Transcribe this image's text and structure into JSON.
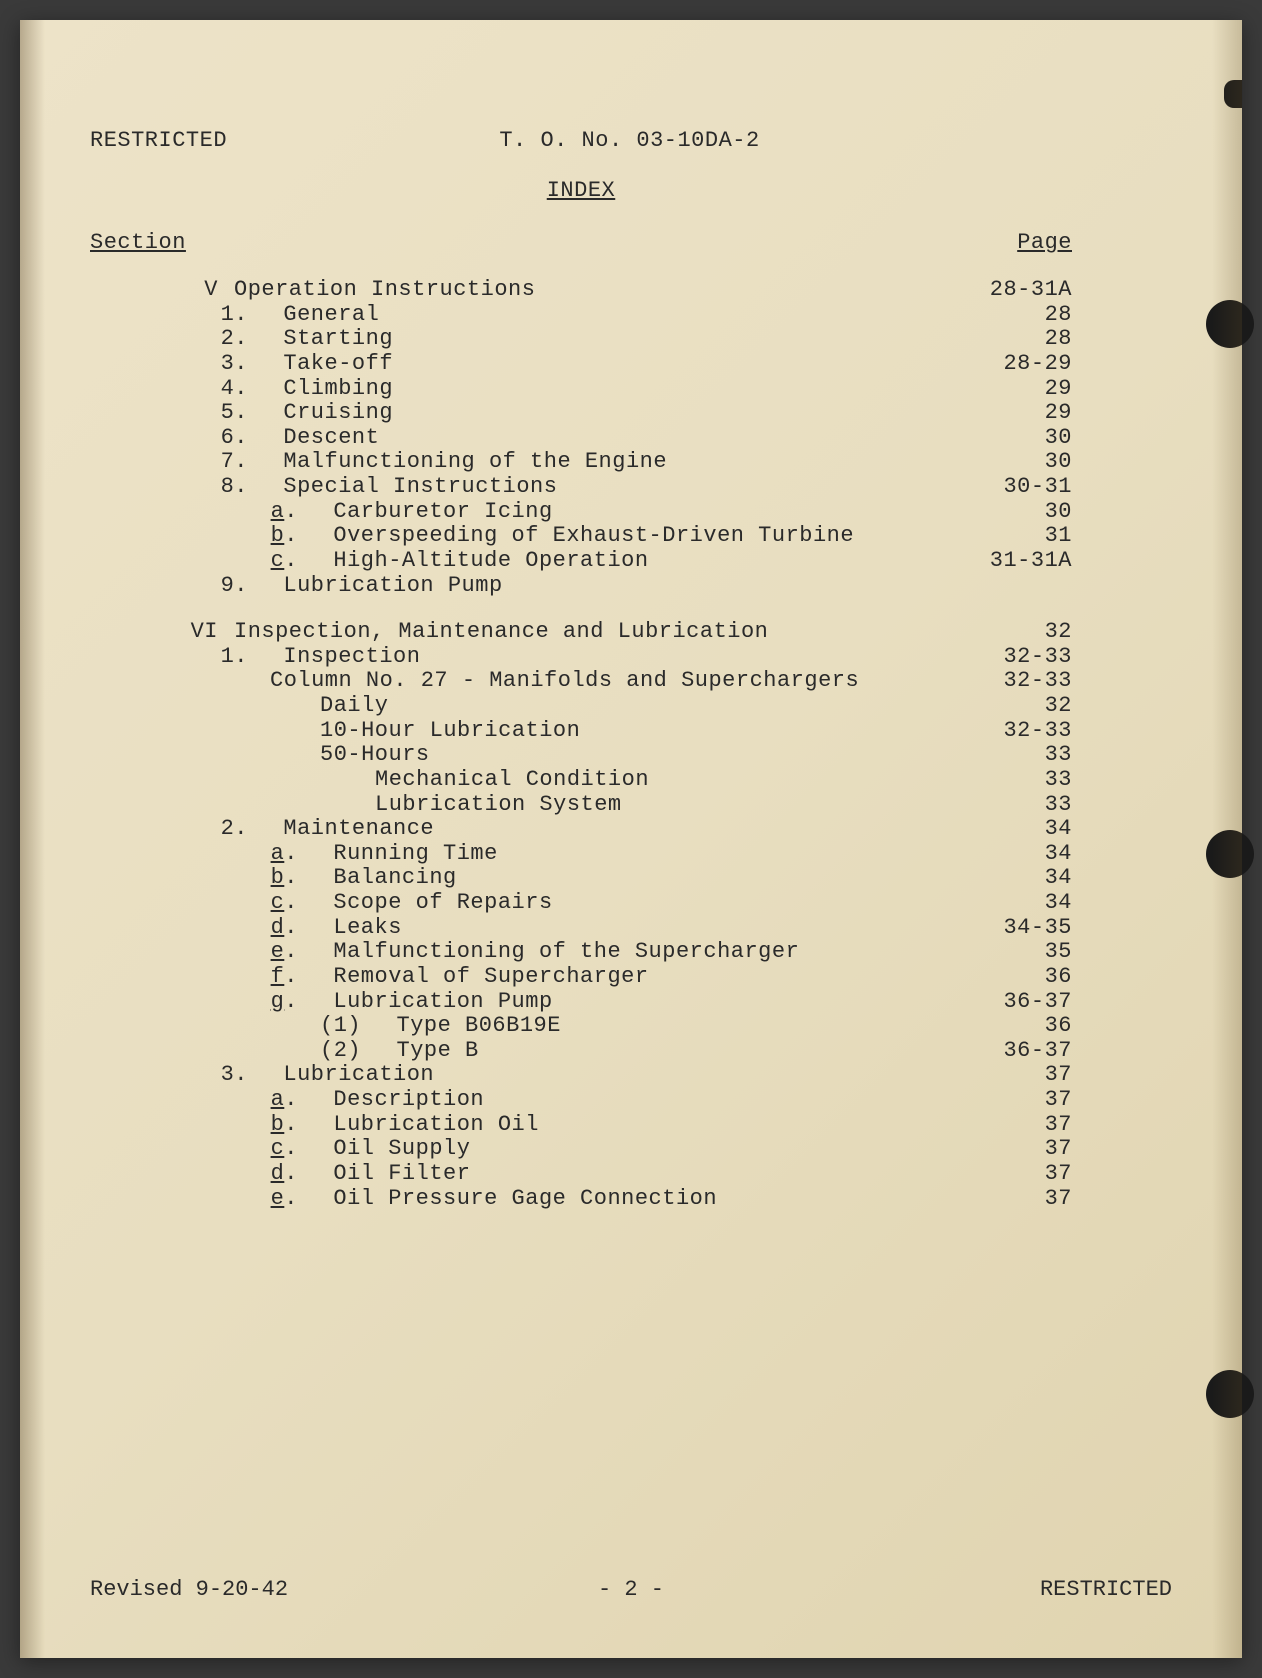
{
  "header": {
    "classification": "RESTRICTED",
    "doc_number": "T. O. No. 03-10DA-2"
  },
  "title": "INDEX",
  "column_headers": {
    "left": "Section",
    "right": "Page"
  },
  "sections": [
    {
      "roman": "V",
      "title": "Operation Instructions",
      "page": "28-31A",
      "items": [
        {
          "level": 2,
          "num": "1.",
          "label": "General",
          "page": "28"
        },
        {
          "level": 2,
          "num": "2.",
          "label": "Starting",
          "page": "28"
        },
        {
          "level": 2,
          "num": "3.",
          "label": "Take-off",
          "page": "28-29"
        },
        {
          "level": 2,
          "num": "4.",
          "label": "Climbing",
          "page": "29"
        },
        {
          "level": 2,
          "num": "5.",
          "label": "Cruising",
          "page": "29"
        },
        {
          "level": 2,
          "num": "6.",
          "label": "Descent",
          "page": "30"
        },
        {
          "level": 2,
          "num": "7.",
          "label": "Malfunctioning of the Engine",
          "page": "30"
        },
        {
          "level": 2,
          "num": "8.",
          "label": "Special Instructions",
          "page": "30-31"
        },
        {
          "level": 3,
          "num": "a.",
          "ul": true,
          "label": "Carburetor Icing",
          "page": "30"
        },
        {
          "level": 3,
          "num": "b.",
          "ul": true,
          "label": "Overspeeding of Exhaust-Driven Turbine",
          "page": "31"
        },
        {
          "level": 3,
          "num": "c.",
          "ul": true,
          "label": "High-Altitude Operation",
          "page": "31-31A"
        },
        {
          "level": 2,
          "num": "9.",
          "label": "Lubrication Pump",
          "page": ""
        }
      ]
    },
    {
      "roman": "VI",
      "title": "Inspection, Maintenance and Lubrication",
      "page": "32",
      "items": [
        {
          "level": 2,
          "num": "1.",
          "label": "Inspection",
          "page": "32-33"
        },
        {
          "level": 3,
          "num": "",
          "label": "Column No. 27 - Manifolds and Superchargers",
          "page": "32-33"
        },
        {
          "level": 4,
          "num": "",
          "label": "Daily",
          "page": "32"
        },
        {
          "level": 4,
          "num": "",
          "label": "10-Hour Lubrication",
          "page": "32-33"
        },
        {
          "level": 4,
          "num": "",
          "label": "50-Hours",
          "page": "33"
        },
        {
          "level": 5,
          "num": "",
          "label": "Mechanical Condition",
          "page": "33"
        },
        {
          "level": 5,
          "num": "",
          "label": "Lubrication System",
          "page": "33"
        },
        {
          "level": 2,
          "num": "2.",
          "label": "Maintenance",
          "page": "34"
        },
        {
          "level": 3,
          "num": "a.",
          "ul": true,
          "label": "Running Time",
          "page": "34"
        },
        {
          "level": 3,
          "num": "b.",
          "ul": true,
          "label": "Balancing",
          "page": "34"
        },
        {
          "level": 3,
          "num": "c.",
          "ul": true,
          "label": "Scope of Repairs",
          "page": "34"
        },
        {
          "level": 3,
          "num": "d.",
          "ul": true,
          "label": "Leaks",
          "page": "34-35"
        },
        {
          "level": 3,
          "num": "e.",
          "ul": true,
          "label": "Malfunctioning of the Supercharger",
          "page": "35"
        },
        {
          "level": 3,
          "num": "f.",
          "ul": true,
          "label": "Removal of Supercharger",
          "page": "36"
        },
        {
          "level": 3,
          "num": "g.",
          "ul": true,
          "label": "Lubrication Pump",
          "page": "36-37"
        },
        {
          "level": 4,
          "num": "(1)",
          "label": "Type B06B19E",
          "page": "36"
        },
        {
          "level": 4,
          "num": "(2)",
          "label": "Type B",
          "page": "36-37"
        },
        {
          "level": 2,
          "num": "3.",
          "label": "Lubrication",
          "page": "37"
        },
        {
          "level": 3,
          "num": "a.",
          "ul": true,
          "label": "Description",
          "page": "37"
        },
        {
          "level": 3,
          "num": "b.",
          "ul": true,
          "label": "Lubrication Oil",
          "page": "37"
        },
        {
          "level": 3,
          "num": "c.",
          "ul": true,
          "label": "Oil Supply",
          "page": "37"
        },
        {
          "level": 3,
          "num": "d.",
          "ul": true,
          "label": "Oil Filter",
          "page": "37"
        },
        {
          "level": 3,
          "num": "e.",
          "ul": true,
          "label": "Oil Pressure Gage Connection",
          "page": "37"
        }
      ]
    }
  ],
  "footer": {
    "revised": "Revised 9-20-42",
    "page": "- 2 -",
    "classification": "RESTRICTED"
  },
  "colors": {
    "paper": "#e8dec0",
    "text": "#2a2a2a",
    "hole": "#1a1a1a"
  }
}
